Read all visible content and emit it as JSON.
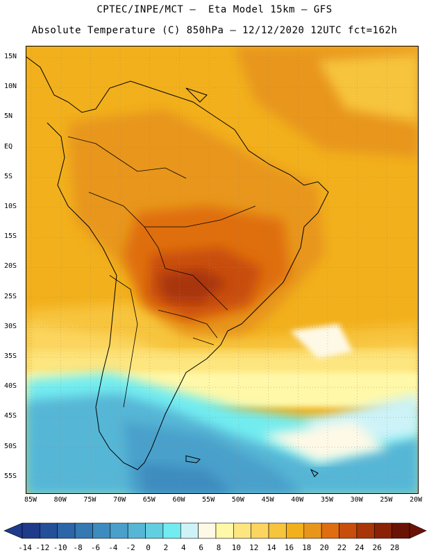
{
  "header": {
    "line1": "CPTEC/INPE/MCT –  Eta Model 15km – GFS",
    "line2": "Absolute Temperature (C) 850hPa – 12/12/2020 12UTC fct=162h"
  },
  "map": {
    "lat_labels": [
      "15N",
      "10N",
      "5N",
      "EQ",
      "5S",
      "10S",
      "15S",
      "20S",
      "25S",
      "30S",
      "35S",
      "40S",
      "45S",
      "50S",
      "55S"
    ],
    "lon_labels": [
      "85W",
      "80W",
      "75W",
      "70W",
      "65W",
      "60W",
      "55W",
      "50W",
      "45W",
      "40W",
      "35W",
      "30W",
      "25W",
      "20W"
    ]
  },
  "colorbar": {
    "labels": [
      "-14",
      "-12",
      "-10",
      "-8",
      "-6",
      "-4",
      "-2",
      "0",
      "2",
      "4",
      "6",
      "8",
      "10",
      "12",
      "14",
      "16",
      "18",
      "20",
      "22",
      "24",
      "26",
      "28"
    ],
    "colors": [
      "#1e3a8a",
      "#24509a",
      "#2c66a8",
      "#3478b4",
      "#3d8cbf",
      "#4aa0cb",
      "#56b6d6",
      "#62cfe0",
      "#72ecf0",
      "#cdf3f8",
      "#fef9e6",
      "#fff8a8",
      "#fde680",
      "#fbd55f",
      "#f7c43e",
      "#f2b01c",
      "#e8961a",
      "#df6e10",
      "#c84e0c",
      "#a83608",
      "#8a2206",
      "#6b1206"
    ]
  }
}
